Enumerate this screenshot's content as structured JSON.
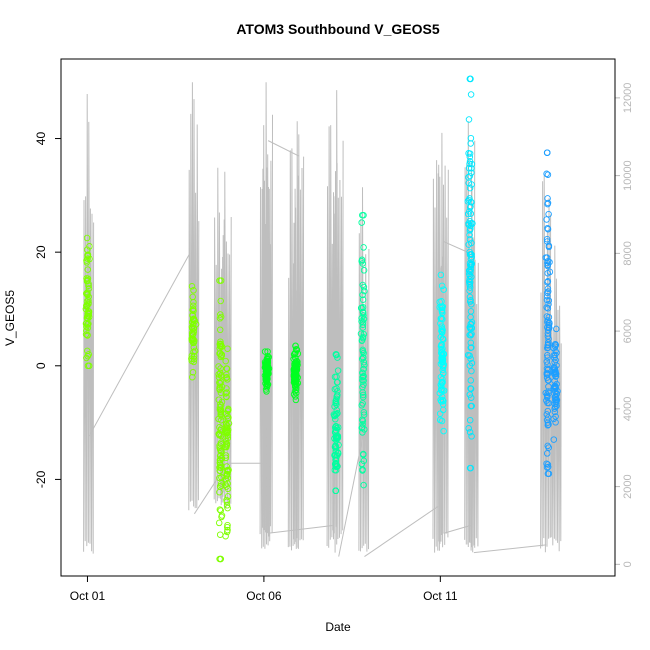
{
  "chart_data": {
    "type": "scatter",
    "title": "ATOM3 Southbound V_GEOS5",
    "xlabel": "Date",
    "ylabel": "V_GEOS5",
    "x_ticks": [
      "Oct 01",
      "Oct 06",
      "Oct 11"
    ],
    "x_tick_days": [
      1,
      6,
      11
    ],
    "xlim": [
      0.25,
      15.95
    ],
    "ylim": [
      -37,
      54
    ],
    "y_ticks": [
      -20,
      0,
      20,
      40
    ],
    "y2_ticks": [
      0,
      2000,
      4000,
      6000,
      8000,
      10000,
      12000
    ],
    "y2lim": [
      -300,
      13000
    ],
    "grid": false,
    "legend": "none",
    "colors": {
      "lightgreen": "#7fff00",
      "green": "#00ff21",
      "teal": "#00ffa0",
      "cyan": "#00ffff",
      "cyan2": "#00e8ff",
      "blue": "#1e9fff",
      "altitude_line": "#bebebe"
    },
    "series": [
      {
        "x": 1.0,
        "y_min": 0,
        "y_max": 22.5,
        "color": "lightgreen",
        "weight": 1.0
      },
      {
        "x": 4.0,
        "y_min": -2,
        "y_max": 14,
        "color": "lightgreen",
        "weight": 0.8
      },
      {
        "x": 4.77,
        "y_min": -34,
        "y_max": 15,
        "color": "lightgreen",
        "weight": 1.6
      },
      {
        "x": 4.95,
        "y_min": -30,
        "y_max": 3,
        "color": "lightgreen",
        "weight": 1.2
      },
      {
        "x": 6.08,
        "y_min": -4.5,
        "y_max": 2.5,
        "color": "green",
        "weight": 1.5
      },
      {
        "x": 6.9,
        "y_min": -6,
        "y_max": 3.5,
        "color": "green",
        "weight": 1.5
      },
      {
        "x": 8.05,
        "y_min": -22,
        "y_max": 2,
        "color": "teal",
        "weight": 1.3
      },
      {
        "x": 8.8,
        "y_min": -21,
        "y_max": 26.5,
        "color": "teal",
        "weight": 1.2
      },
      {
        "x": 11.05,
        "y_min": -11.5,
        "y_max": 16,
        "color": "cyan",
        "weight": 1.3
      },
      {
        "x": 11.85,
        "y_min": -18,
        "y_max": 50.5,
        "color": "cyan2",
        "weight": 1.8
      },
      {
        "x": 14.05,
        "y_min": -19,
        "y_max": 37.5,
        "color": "blue",
        "weight": 1.6
      },
      {
        "x": 14.25,
        "y_min": -13,
        "y_max": 6.5,
        "color": "blue",
        "weight": 1.0
      }
    ],
    "altitude_series": {
      "name": "",
      "spikes": [
        {
          "x": 1.05,
          "low": 200,
          "high": 12100
        },
        {
          "x": 4.03,
          "low": 1300,
          "high": 12400
        },
        {
          "x": 4.75,
          "low": 1500,
          "high": 10200
        },
        {
          "x": 4.95,
          "low": 1400,
          "high": 10100
        },
        {
          "x": 6.05,
          "low": 400,
          "high": 11300
        },
        {
          "x": 6.12,
          "low": 600,
          "high": 12400
        },
        {
          "x": 6.85,
          "low": 200,
          "high": 10700
        },
        {
          "x": 7.0,
          "low": 300,
          "high": 11400
        },
        {
          "x": 7.95,
          "low": 300,
          "high": 11300
        },
        {
          "x": 8.12,
          "low": 600,
          "high": 12200
        },
        {
          "x": 8.85,
          "low": 200,
          "high": 9700
        },
        {
          "x": 10.95,
          "low": 300,
          "high": 10400
        },
        {
          "x": 11.1,
          "low": 400,
          "high": 11100
        },
        {
          "x": 11.85,
          "low": 300,
          "high": 11400
        },
        {
          "x": 11.95,
          "low": 300,
          "high": 9800
        },
        {
          "x": 14.0,
          "low": 300,
          "high": 10000
        },
        {
          "x": 14.3,
          "low": 300,
          "high": 8200
        }
      ],
      "connectors": [
        [
          [
            1.05,
            3300
          ],
          [
            3.9,
            8000
          ]
        ],
        [
          [
            4.03,
            1300
          ],
          [
            4.75,
            2300
          ]
        ],
        [
          [
            4.95,
            2600
          ],
          [
            6.05,
            2600
          ]
        ],
        [
          [
            6.12,
            10900
          ],
          [
            7.0,
            10500
          ]
        ],
        [
          [
            6.12,
            800
          ],
          [
            7.95,
            1000
          ]
        ],
        [
          [
            8.12,
            200
          ],
          [
            8.85,
            3500
          ]
        ],
        [
          [
            8.85,
            200
          ],
          [
            10.95,
            1500
          ]
        ],
        [
          [
            11.1,
            800
          ],
          [
            11.85,
            1000
          ]
        ],
        [
          [
            11.1,
            8300
          ],
          [
            11.85,
            8000
          ]
        ],
        [
          [
            11.95,
            300
          ],
          [
            14.0,
            500
          ]
        ]
      ]
    }
  }
}
